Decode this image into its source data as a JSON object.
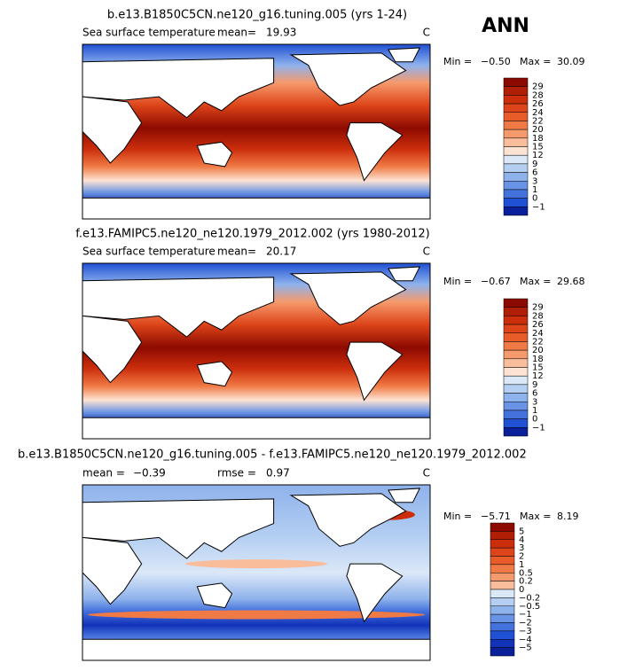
{
  "season": "ANN",
  "panels": [
    {
      "title": "b.e13.B1850C5CN.ne120_g16.tuning.005 (yrs 1-24)",
      "variable": "Sea surface temperature",
      "mean_label": "mean=",
      "mean": "19.93",
      "units": "C",
      "min_label": "Min =",
      "min": "−0.50",
      "max_label": "Max =",
      "max": "30.09",
      "colorbar_labels": [
        "29",
        "28",
        "26",
        "24",
        "22",
        "20",
        "18",
        "15",
        "12",
        "9",
        "6",
        "3",
        "1",
        "0",
        "−1"
      ],
      "colorbar_colors": [
        "#8c0a00",
        "#b01e05",
        "#cc2e0c",
        "#dd4419",
        "#e85c2a",
        "#f07a45",
        "#f59a6c",
        "#f9bd9b",
        "#fde3d2",
        "#dbe8f8",
        "#b5cff2",
        "#8eb2ec",
        "#6993e4",
        "#4472dc",
        "#2050d3",
        "#0a1f9a"
      ]
    },
    {
      "title": "f.e13.FAMIPC5.ne120_ne120.1979_2012.002 (yrs 1980-2012)",
      "variable": "Sea surface temperature",
      "mean_label": "mean=",
      "mean": "20.17",
      "units": "C",
      "min_label": "Min =",
      "min": "−0.67",
      "max_label": "Max =",
      "max": "29.68",
      "colorbar_labels": [
        "29",
        "28",
        "26",
        "24",
        "22",
        "20",
        "18",
        "15",
        "12",
        "9",
        "6",
        "3",
        "1",
        "0",
        "−1"
      ],
      "colorbar_colors": [
        "#8c0a00",
        "#b01e05",
        "#cc2e0c",
        "#dd4419",
        "#e85c2a",
        "#f07a45",
        "#f59a6c",
        "#f9bd9b",
        "#fde3d2",
        "#dbe8f8",
        "#b5cff2",
        "#8eb2ec",
        "#6993e4",
        "#4472dc",
        "#2050d3",
        "#0a1f9a"
      ]
    },
    {
      "title": "b.e13.B1850C5CN.ne120_g16.tuning.005 - f.e13.FAMIPC5.ne120_ne120.1979_2012.002",
      "mean_label": "mean =",
      "mean": "−0.39",
      "rmse_label": "rmse =",
      "rmse": "0.97",
      "units": "C",
      "min_label": "Min =",
      "min": "−5.71",
      "max_label": "Max =",
      "max": "8.19",
      "colorbar_labels": [
        "5",
        "4",
        "3",
        "2",
        "1",
        "0.5",
        "0.2",
        "0",
        "−0.2",
        "−0.5",
        "−1",
        "−2",
        "−3",
        "−4",
        "−5"
      ],
      "colorbar_colors": [
        "#8c0a00",
        "#b01e05",
        "#cc2e0c",
        "#dd4419",
        "#e85c2a",
        "#f07a45",
        "#f59a6c",
        "#f9bd9b",
        "#dbe8f8",
        "#b5cff2",
        "#8eb2ec",
        "#6993e4",
        "#4472dc",
        "#2050d3",
        "#1232b8",
        "#0a1f9a"
      ]
    }
  ]
}
